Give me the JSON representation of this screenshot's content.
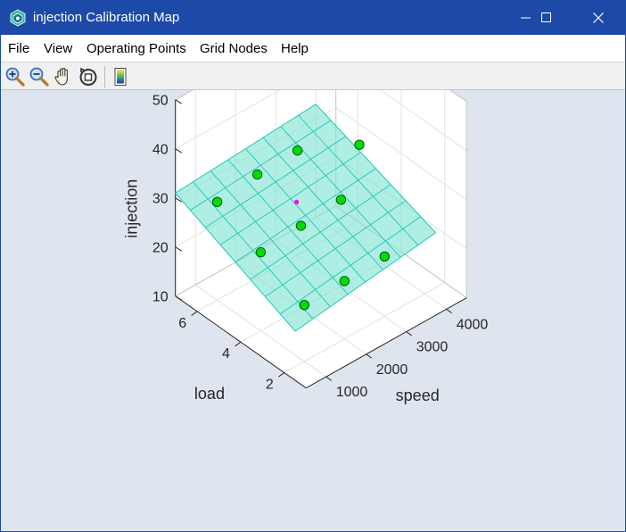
{
  "window": {
    "title": "injection Calibration Map",
    "minimize_icon": "minimize-icon",
    "maximize_icon": "maximize-icon",
    "close_icon": "close-icon"
  },
  "menu": {
    "items": [
      "File",
      "View",
      "Operating Points",
      "Grid Nodes",
      "Help"
    ]
  },
  "toolbar": {
    "tools": [
      "zoom-in-icon",
      "zoom-out-icon",
      "pan-hand-icon",
      "rotate-3d-icon",
      "colorbar-icon"
    ]
  },
  "colors": {
    "titlebar": "#1d4aa8",
    "plot_background": "#dfe5ef",
    "surface_fill": "#7fe3d4",
    "surface_edge": "#1fc8b4",
    "operating_point": "#00dd00",
    "highlight_point": "#ff00ff"
  },
  "chart_data": {
    "type": "surface3d",
    "xlabel": "speed",
    "ylabel": "load",
    "zlabel": "injection",
    "xlim": [
      500,
      4500
    ],
    "ylim": [
      1,
      7
    ],
    "zlim": [
      10,
      50
    ],
    "xticks": [
      "1000",
      "2000",
      "3000",
      "4000"
    ],
    "yticks": [
      "2",
      "4",
      "6"
    ],
    "zticks": [
      "10",
      "20",
      "30",
      "40",
      "50"
    ],
    "grid": true,
    "surface": {
      "x_range": [
        500,
        4000
      ],
      "y_range": [
        1.5,
        7
      ],
      "z_corners": {
        "x_min_y_min": 20,
        "x_max_y_min": 24,
        "x_min_y_max": 31,
        "x_max_y_max": 33
      },
      "grid_divisions": 8
    },
    "points": [
      {
        "x": 1000,
        "y": 2,
        "z": 21.5
      },
      {
        "x": 2000,
        "y": 2,
        "z": 21.8
      },
      {
        "x": 3000,
        "y": 2,
        "z": 22.2
      },
      {
        "x": 1000,
        "y": 4,
        "z": 26.0
      },
      {
        "x": 2000,
        "y": 4,
        "z": 26.8
      },
      {
        "x": 3000,
        "y": 4,
        "z": 27.5
      },
      {
        "x": 1000,
        "y": 6,
        "z": 30.0
      },
      {
        "x": 2000,
        "y": 6,
        "z": 31.0
      },
      {
        "x": 3000,
        "y": 6,
        "z": 31.3
      },
      {
        "x": 4000,
        "y": 5,
        "z": 31.0
      }
    ],
    "highlight": {
      "x": 2000,
      "y": 4.2,
      "z": 31.0
    }
  }
}
